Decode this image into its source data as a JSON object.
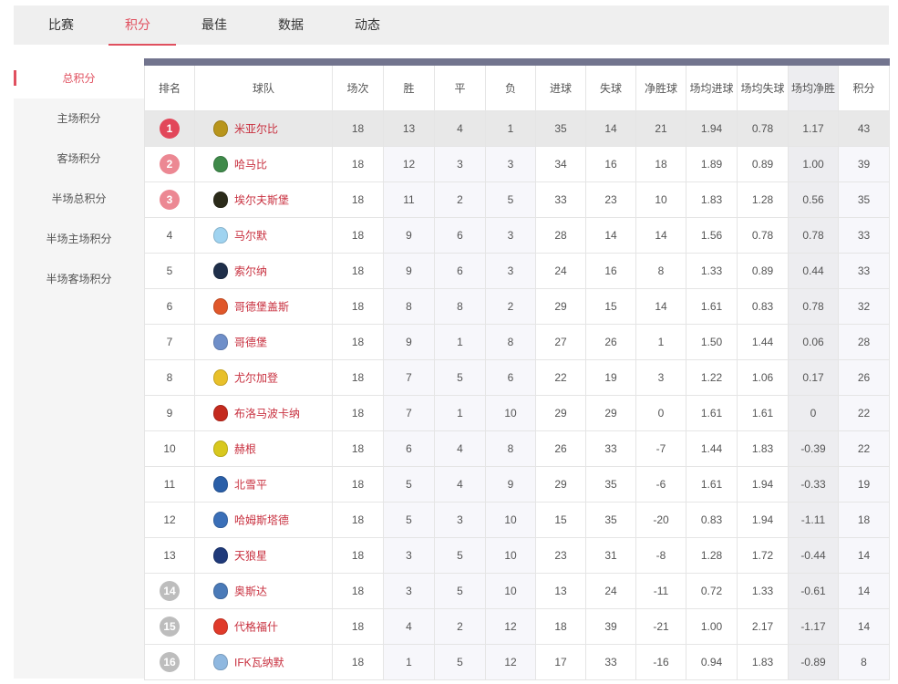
{
  "tabs": [
    {
      "label": "比赛"
    },
    {
      "label": "积分",
      "active": true
    },
    {
      "label": "最佳"
    },
    {
      "label": "数据"
    },
    {
      "label": "动态"
    }
  ],
  "sidebar": [
    {
      "label": "总积分",
      "active": true
    },
    {
      "label": "主场积分"
    },
    {
      "label": "客场积分"
    },
    {
      "label": "半场总积分"
    },
    {
      "label": "半场主场积分"
    },
    {
      "label": "半场客场积分"
    }
  ],
  "colors": {
    "accent": "#e0505f",
    "header_bar": "#72748e",
    "badge_top": "#e2475a",
    "badge_europe": "#ec8893",
    "badge_relegation": "#bdbdbd",
    "team_link": "#c8303f"
  },
  "table": {
    "headers": [
      "排名",
      "球队",
      "场次",
      "胜",
      "平",
      "负",
      "进球",
      "失球",
      "净胜球",
      "场均进球",
      "场均失球",
      "场均净胜",
      "积分"
    ],
    "rows": [
      {
        "rank": "1",
        "badge": "top",
        "team": "米亚尔比",
        "crest": "#b8951c",
        "v": [
          "18",
          "13",
          "4",
          "1",
          "35",
          "14",
          "21",
          "1.94",
          "0.78",
          "1.17",
          "43"
        ]
      },
      {
        "rank": "2",
        "badge": "europe",
        "team": "哈马比",
        "crest": "#3f8a4a",
        "v": [
          "18",
          "12",
          "3",
          "3",
          "34",
          "16",
          "18",
          "1.89",
          "0.89",
          "1.00",
          "39"
        ]
      },
      {
        "rank": "3",
        "badge": "europe",
        "team": "埃尔夫斯堡",
        "crest": "#2b2b1a",
        "v": [
          "18",
          "11",
          "2",
          "5",
          "33",
          "23",
          "10",
          "1.83",
          "1.28",
          "0.56",
          "35"
        ]
      },
      {
        "rank": "4",
        "team": "马尔默",
        "crest": "#9fd3f0",
        "v": [
          "18",
          "9",
          "6",
          "3",
          "28",
          "14",
          "14",
          "1.56",
          "0.78",
          "0.78",
          "33"
        ]
      },
      {
        "rank": "5",
        "team": "索尔纳",
        "crest": "#1f2f4a",
        "v": [
          "18",
          "9",
          "6",
          "3",
          "24",
          "16",
          "8",
          "1.33",
          "0.89",
          "0.44",
          "33"
        ]
      },
      {
        "rank": "6",
        "team": "哥德堡盖斯",
        "crest": "#e0572a",
        "v": [
          "18",
          "8",
          "8",
          "2",
          "29",
          "15",
          "14",
          "1.61",
          "0.83",
          "0.78",
          "32"
        ]
      },
      {
        "rank": "7",
        "team": "哥德堡",
        "crest": "#6f8fc9",
        "v": [
          "18",
          "9",
          "1",
          "8",
          "27",
          "26",
          "1",
          "1.50",
          "1.44",
          "0.06",
          "28"
        ]
      },
      {
        "rank": "8",
        "team": "尤尔加登",
        "crest": "#e8c02a",
        "v": [
          "18",
          "7",
          "5",
          "6",
          "22",
          "19",
          "3",
          "1.22",
          "1.06",
          "0.17",
          "26"
        ]
      },
      {
        "rank": "9",
        "team": "布洛马波卡纳",
        "crest": "#c42a1e",
        "v": [
          "18",
          "7",
          "1",
          "10",
          "29",
          "29",
          "0",
          "1.61",
          "1.61",
          "0",
          "22"
        ]
      },
      {
        "rank": "10",
        "team": "赫根",
        "crest": "#d8c81e",
        "v": [
          "18",
          "6",
          "4",
          "8",
          "26",
          "33",
          "-7",
          "1.44",
          "1.83",
          "-0.39",
          "22"
        ]
      },
      {
        "rank": "11",
        "team": "北雪平",
        "crest": "#2a5fa8",
        "v": [
          "18",
          "5",
          "4",
          "9",
          "29",
          "35",
          "-6",
          "1.61",
          "1.94",
          "-0.33",
          "19"
        ]
      },
      {
        "rank": "12",
        "team": "哈姆斯塔德",
        "crest": "#3a6fb8",
        "v": [
          "18",
          "5",
          "3",
          "10",
          "15",
          "35",
          "-20",
          "0.83",
          "1.94",
          "-1.11",
          "18"
        ]
      },
      {
        "rank": "13",
        "team": "天狼星",
        "crest": "#1f3a7a",
        "v": [
          "18",
          "3",
          "5",
          "10",
          "23",
          "31",
          "-8",
          "1.28",
          "1.72",
          "-0.44",
          "14"
        ]
      },
      {
        "rank": "14",
        "badge": "relegation",
        "team": "奥斯达",
        "crest": "#4a7ab8",
        "v": [
          "18",
          "3",
          "5",
          "10",
          "13",
          "24",
          "-11",
          "0.72",
          "1.33",
          "-0.61",
          "14"
        ]
      },
      {
        "rank": "15",
        "badge": "relegation",
        "team": "代格福什",
        "crest": "#e03a2a",
        "v": [
          "18",
          "4",
          "2",
          "12",
          "18",
          "39",
          "-21",
          "1.00",
          "2.17",
          "-1.17",
          "14"
        ]
      },
      {
        "rank": "16",
        "badge": "relegation",
        "team": "IFK瓦纳默",
        "crest": "#8fb8e0",
        "v": [
          "18",
          "1",
          "5",
          "12",
          "17",
          "33",
          "-16",
          "0.94",
          "1.83",
          "-0.89",
          "8"
        ]
      }
    ]
  }
}
